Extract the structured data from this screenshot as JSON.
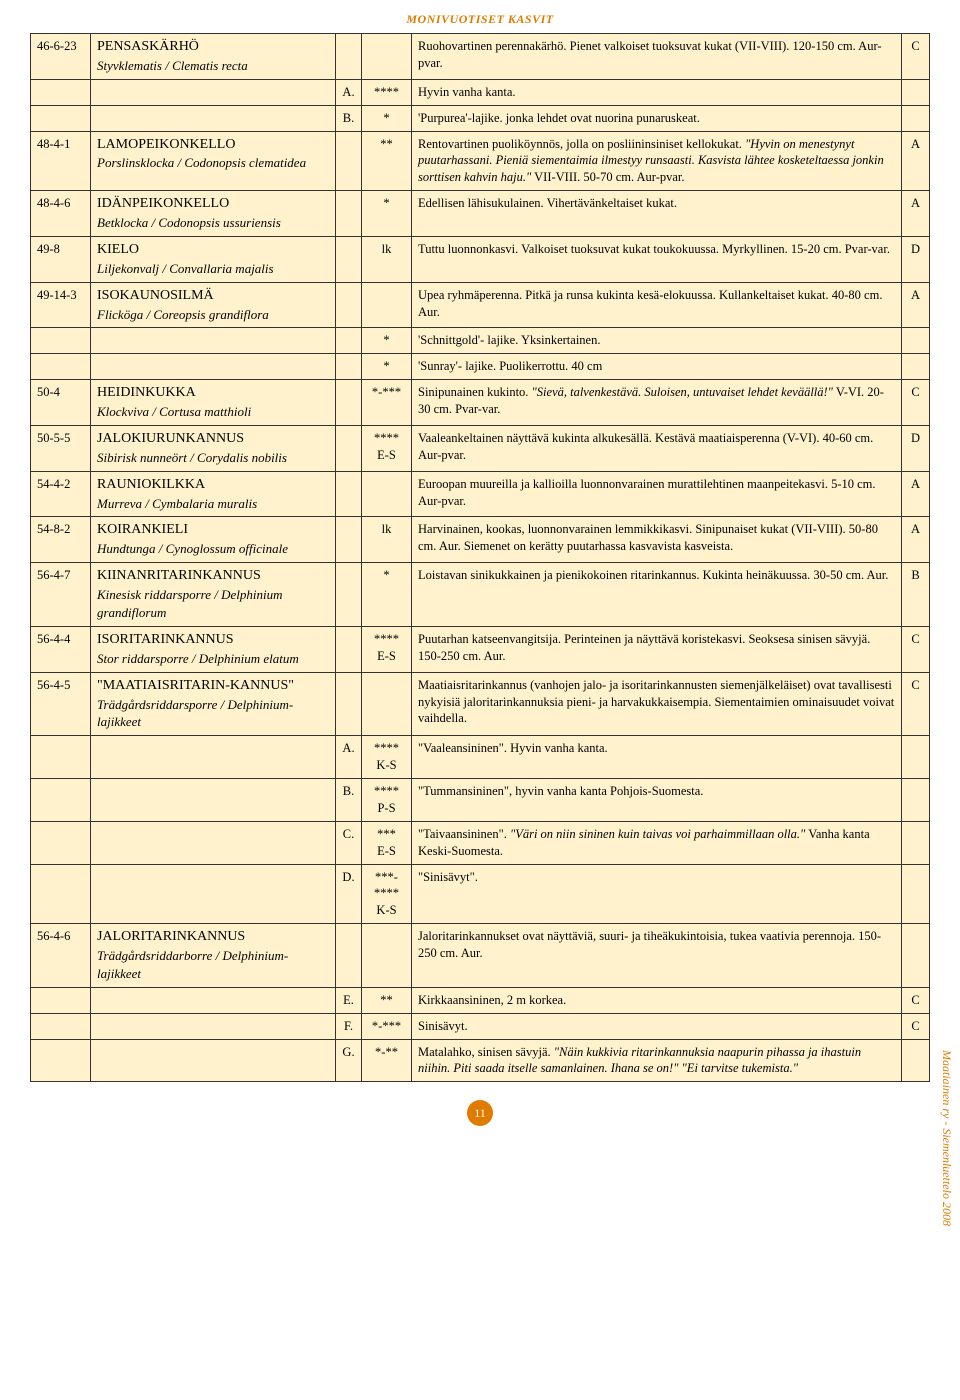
{
  "colors": {
    "header_text": "#e07b00",
    "table_bg": "#fff2cc",
    "border": "#333333",
    "pagenum_bg": "#e07b00",
    "side_text": "#e07b00"
  },
  "header": "MONIVUOTISET KASVIT",
  "side_label": "Maatiainen ry  -  Siemenluettelo 2008",
  "page_number": "11",
  "rows": [
    {
      "code": "46-6-23",
      "nameFi": "PENSASKÄRHÖ",
      "nameSv": "Styvklematis",
      "latin": "Clematis recta",
      "letter": "",
      "stars": "",
      "desc": "Ruohovartinen perennakärhö. Pienet valkoiset tuoksuvat kukat (VII-VIII). 120-150 cm. Aur-pvar.",
      "rating": "C"
    },
    {
      "code": "",
      "nameFi": "",
      "nameSv": "",
      "latin": "",
      "letter": "A.",
      "stars": "****",
      "desc": "Hyvin vanha kanta.",
      "rating": ""
    },
    {
      "code": "",
      "nameFi": "",
      "nameSv": "",
      "latin": "",
      "letter": "B.",
      "stars": "*",
      "desc": "'Purpurea'-lajike. jonka lehdet ovat nuorina punaruskeat.",
      "rating": ""
    },
    {
      "code": "48-4-1",
      "nameFi": "LAMOPEIKONKELLO",
      "nameSv": "Porslinsklocka",
      "latin": "Codonopsis clematidea",
      "letter": "",
      "stars": "**",
      "desc": "Rentovartinen puoliköynnös, jolla on posliininsiniset kellokukat. <span class=\"italic\">\"Hyvin on menestynyt puutarhassani. Pieniä siementaimia ilmestyy runsaasti. Kasvista lähtee kosketeltaessa jonkin sorttisen kahvin haju.\"</span> VII-VIII. 50-70 cm. Aur-pvar.",
      "rating": "A"
    },
    {
      "code": "48-4-6",
      "nameFi": "IDÄNPEIKONKELLO",
      "nameSv": "Betklocka",
      "latin": "Codonopsis ussuriensis",
      "letter": "",
      "stars": "*",
      "desc": "Edellisen lähisukulainen. Vihertävänkeltaiset kukat.",
      "rating": "A"
    },
    {
      "code": "49-8",
      "nameFi": "KIELO",
      "nameSv": "Liljekonvalj",
      "latin": "Convallaria majalis",
      "letter": "",
      "stars": "lk",
      "desc": "Tuttu luonnonkasvi. Valkoiset tuoksuvat kukat toukokuussa. Myrkyllinen. 15-20 cm. Pvar-var.",
      "rating": "D"
    },
    {
      "code": "49-14-3",
      "nameFi": "ISOKAUNOSILMÄ",
      "nameSv": "Flicköga",
      "latin": "Coreopsis grandiflora",
      "letter": "",
      "stars": "",
      "desc": "Upea ryhmäperenna. Pitkä ja runsa kukinta kesä-elokuussa. Kullankeltaiset kukat. 40-80 cm. Aur.",
      "rating": "A"
    },
    {
      "code": "",
      "nameFi": "",
      "nameSv": "",
      "latin": "",
      "letter": "",
      "stars": "*",
      "desc": "'Schnittgold'- lajike. Yksinkertainen.",
      "rating": ""
    },
    {
      "code": "",
      "nameFi": "",
      "nameSv": "",
      "latin": "",
      "letter": "",
      "stars": "*",
      "desc": "'Sunray'- lajike. Puolikerrottu. 40 cm",
      "rating": ""
    },
    {
      "code": "50-4",
      "nameFi": "HEIDINKUKKA",
      "nameSv": "Klockviva",
      "latin": "Cortusa matthioli",
      "letter": "",
      "stars": "*-***",
      "desc": "Sinipunainen kukinto. <span class=\"italic\">\"Sievä, talvenkestävä. Suloisen, untuvaiset lehdet keväällä!\"</span> V-VI. 20-30 cm. Pvar-var.",
      "rating": "C"
    },
    {
      "code": "50-5-5",
      "nameFi": "JALOKIURUNKANNUS",
      "nameSv": "Sibirisk nunneört",
      "latin": "Corydalis nobilis",
      "letter": "",
      "stars": "****\nE-S",
      "desc": "Vaaleankeltainen näyttävä kukinta alkukesällä. Kestävä maatiaisperenna (V-VI). 40-60 cm. Aur-pvar.",
      "rating": "D"
    },
    {
      "code": "54-4-2",
      "nameFi": "RAUNIOKILKKA",
      "nameSv": "Murreva",
      "latin": "Cymbalaria muralis",
      "letter": "",
      "stars": "",
      "desc": "Euroopan muureilla ja kallioilla luonnonvarainen murattilehtinen maanpeitekasvi. 5-10 cm. Aur-pvar.",
      "rating": "A"
    },
    {
      "code": "54-8-2",
      "nameFi": "KOIRANKIELI",
      "nameSv": "Hundtunga",
      "latin": "Cynoglossum officinale",
      "letter": "",
      "stars": "lk",
      "desc": "Harvinainen, kookas, luonnonvarainen lemmikkikasvi. Sinipunaiset kukat (VII-VIII). 50-80 cm. Aur. Siemenet on kerätty puutarhassa kasvavista kasveista.",
      "rating": "A"
    },
    {
      "code": "56-4-7",
      "nameFi": "KIINANRITARINKANNUS",
      "nameSv": "Kinesisk riddarsporre",
      "latin": "Delphinium grandiflorum",
      "letter": "",
      "stars": "*",
      "desc": "Loistavan sinikukkainen ja pienikokoinen ritarinkannus. Kukinta heinäkuussa. 30-50 cm. Aur.",
      "rating": "B"
    },
    {
      "code": "56-4-4",
      "nameFi": "ISORITARINKANNUS",
      "nameSv": "Stor riddarsporre",
      "latin": "Delphinium elatum",
      "letter": "",
      "stars": "****\nE-S",
      "desc": "Puutarhan katseenvangitsija. Perinteinen ja näyttävä koristekasvi. Seoksesa sinisen sävyjä. 150-250 cm. Aur.",
      "rating": "C"
    },
    {
      "code": "56-4-5",
      "nameFi": "\"MAATIAISRITARIN-KANNUS\"",
      "nameSv": "Trädgårdsriddarsporre",
      "latin": "Delphinium-lajikkeet",
      "letter": "",
      "stars": "",
      "desc": "Maatiaisritarinkannus (vanhojen jalo- ja isoritarinkannusten siemenjälkeläiset) ovat tavallisesti nykyisiä jaloritarinkannuksia pieni- ja harvakukkaisempia. Siementaimien ominaisuudet voivat vaihdella.",
      "rating": "C"
    },
    {
      "code": "",
      "nameFi": "",
      "nameSv": "",
      "latin": "",
      "letter": "A.",
      "stars": "****\nK-S",
      "desc": "\"Vaaleansininen\". Hyvin vanha kanta.",
      "rating": ""
    },
    {
      "code": "",
      "nameFi": "",
      "nameSv": "",
      "latin": "",
      "letter": "B.",
      "stars": "****\nP-S",
      "desc": "\"Tummansininen\", hyvin vanha kanta Pohjois-Suomesta.",
      "rating": ""
    },
    {
      "code": "",
      "nameFi": "",
      "nameSv": "",
      "latin": "",
      "letter": "C.",
      "stars": "***\nE-S",
      "desc": "\"Taivaansininen\". <span class=\"italic\">\"Väri on niin sininen kuin taivas voi parhaimmillaan olla.\"</span> Vanha kanta Keski-Suomesta.",
      "rating": ""
    },
    {
      "code": "",
      "nameFi": "",
      "nameSv": "",
      "latin": "",
      "letter": "D.",
      "stars": "***-\n****\nK-S",
      "desc": "\"Sinisävyt\".",
      "rating": ""
    },
    {
      "code": "56-4-6",
      "nameFi": "JALORITARINKANNUS",
      "nameSv": "Trädgårdsriddarborre",
      "latin": "Delphinium-lajikkeet",
      "letter": "",
      "stars": "",
      "desc": "Jaloritarinkannukset ovat näyttäviä, suuri- ja tiheäkukintoisia, tukea vaativia perennoja. 150-250 cm. Aur.",
      "rating": ""
    },
    {
      "code": "",
      "nameFi": "",
      "nameSv": "",
      "latin": "",
      "letter": "E.",
      "stars": "**",
      "desc": "Kirkkaansininen, 2 m korkea.",
      "rating": "C"
    },
    {
      "code": "",
      "nameFi": "",
      "nameSv": "",
      "latin": "",
      "letter": "F.",
      "stars": "*-***",
      "desc": "Sinisävyt.",
      "rating": "C"
    },
    {
      "code": "",
      "nameFi": "",
      "nameSv": "",
      "latin": "",
      "letter": "G.",
      "stars": "*-**",
      "desc": "Matalahko, sinisen sävyjä. <span class=\"italic\">\"Näin kukkivia ritarinkannuksia naapurin pihassa ja ihastuin niihin. Piti saada itselle samanlainen. Ihana se on!\" \"Ei tarvitse tukemista.\"</span>",
      "rating": ""
    }
  ]
}
